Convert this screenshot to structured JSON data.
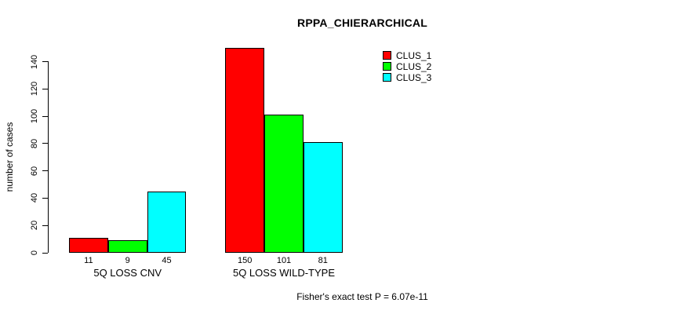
{
  "title": "RPPA_CHIERARCHICAL",
  "annotation": "Fisher's exact test P = 6.07e-11",
  "chart_data": {
    "type": "bar",
    "title": "RPPA_CHIERARCHICAL",
    "categories": [
      "5Q LOSS CNV",
      "5Q LOSS WILD-TYPE"
    ],
    "series": [
      {
        "name": "CLUS_1",
        "color": "#ff0000",
        "values": [
          11,
          150
        ]
      },
      {
        "name": "CLUS_2",
        "color": "#00ff00",
        "values": [
          9,
          101
        ]
      },
      {
        "name": "CLUS_3",
        "color": "#00ffff",
        "values": [
          45,
          81
        ]
      }
    ],
    "xlabel": "",
    "ylabel": "number of cases",
    "yticks": [
      0,
      20,
      40,
      60,
      80,
      100,
      120,
      140
    ],
    "ylim": [
      0,
      150
    ],
    "bar_value_labels": [
      [
        11,
        150
      ],
      [
        9,
        101
      ],
      [
        45,
        81
      ]
    ],
    "grid": false,
    "legend_position": "top-right",
    "annotation": "Fisher's exact test P = 6.07e-11"
  }
}
